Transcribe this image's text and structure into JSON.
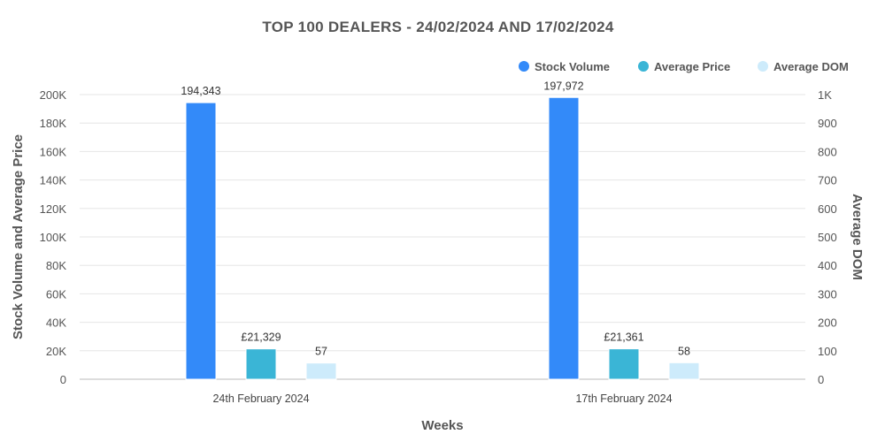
{
  "chart_data": {
    "type": "bar",
    "title": "TOP 100 DEALERS -  24/02/2024 AND 17/02/2024",
    "xlabel": "Weeks",
    "ylabel_left": "Stock Volume and Average Price",
    "ylabel_right": "Average DOM",
    "categories": [
      "24th February 2024",
      "17th February 2024"
    ],
    "ylim_left": [
      0,
      200000
    ],
    "ylim_right": [
      0,
      1000
    ],
    "yticks_left": [
      "0",
      "20K",
      "40K",
      "60K",
      "80K",
      "100K",
      "120K",
      "140K",
      "160K",
      "180K",
      "200K"
    ],
    "yticks_right": [
      "0",
      "100",
      "200",
      "300",
      "400",
      "500",
      "600",
      "700",
      "800",
      "900",
      "1K"
    ],
    "grid": true,
    "legend_position": "top-right",
    "series": [
      {
        "name": "Stock Volume",
        "axis": "left",
        "color": "#338AF9",
        "values": [
          194343,
          197972
        ],
        "labels": [
          "194,343",
          "197,972"
        ]
      },
      {
        "name": "Average Price",
        "axis": "left",
        "color": "#3AB5D6",
        "values": [
          21329,
          21361
        ],
        "labels": [
          "£21,329",
          "£21,361"
        ]
      },
      {
        "name": "Average DOM",
        "axis": "right",
        "color": "#CDEBFB",
        "values": [
          57,
          58
        ],
        "labels": [
          "57",
          "58"
        ]
      }
    ]
  }
}
